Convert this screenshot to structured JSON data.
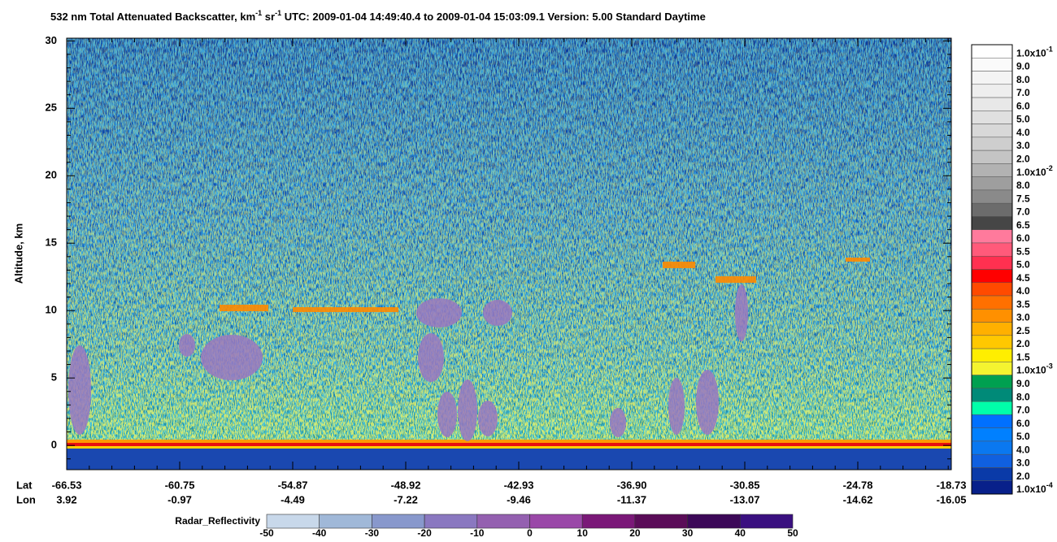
{
  "chart_data": {
    "type": "curtain",
    "title": {
      "parts": [
        {
          "text": "532 nm Total Attenuated Backscatter, km"
        },
        {
          "text": "-1",
          "sup": true
        },
        {
          "text": " sr"
        },
        {
          "text": "-1",
          "sup": true
        },
        {
          "text": "    UTC:  2009-01-04 14:49:40.4  to  2009-01-04 15:03:09.1    Version: 5.00  Standard  Daytime"
        }
      ]
    },
    "ylabel": "Altitude, km",
    "ylim": [
      -1.8,
      30.2
    ],
    "yticks": [
      0,
      5,
      10,
      15,
      20,
      25,
      30
    ],
    "x_rows": [
      {
        "label": "Lat",
        "values": [
          "-66.53",
          "-60.75",
          "-54.87",
          "-48.92",
          "-42.93",
          "-36.90",
          "-30.85",
          "-24.78",
          "-18.73"
        ]
      },
      {
        "label": "Lon",
        "values": [
          "3.92",
          "-0.97",
          "-4.49",
          "-7.22",
          "-9.46",
          "-11.37",
          "-13.07",
          "-14.62",
          "-16.05"
        ]
      }
    ],
    "colorbar": {
      "labels": [
        {
          "text": "1.0x10",
          "sup": "-1"
        },
        {
          "text": "9.0"
        },
        {
          "text": "8.0"
        },
        {
          "text": "7.0"
        },
        {
          "text": "6.0"
        },
        {
          "text": "5.0"
        },
        {
          "text": "4.0"
        },
        {
          "text": "3.0"
        },
        {
          "text": "2.0"
        },
        {
          "text": "1.0x10",
          "sup": "-2"
        },
        {
          "text": "8.0"
        },
        {
          "text": "7.5"
        },
        {
          "text": "7.0"
        },
        {
          "text": "6.5"
        },
        {
          "text": "6.0"
        },
        {
          "text": "5.5"
        },
        {
          "text": "5.0"
        },
        {
          "text": "4.5"
        },
        {
          "text": "4.0"
        },
        {
          "text": "3.5"
        },
        {
          "text": "3.0"
        },
        {
          "text": "2.5"
        },
        {
          "text": "2.0"
        },
        {
          "text": "1.5"
        },
        {
          "text": "1.0x10",
          "sup": "-3"
        },
        {
          "text": "9.0"
        },
        {
          "text": "8.0"
        },
        {
          "text": "7.0"
        },
        {
          "text": "6.0"
        },
        {
          "text": "5.0"
        },
        {
          "text": "4.0"
        },
        {
          "text": "3.0"
        },
        {
          "text": "2.0"
        },
        {
          "text": "1.0x10",
          "sup": "-4"
        }
      ],
      "colors": [
        "#ffffff",
        "#fafafa",
        "#f4f4f4",
        "#eeeeee",
        "#e8e8e8",
        "#e0e0e0",
        "#d8d8d8",
        "#cecece",
        "#c4c4c4",
        "#b2b2b2",
        "#9e9e9e",
        "#8a8a8a",
        "#6c6c6c",
        "#464646",
        "#ff7a9c",
        "#ff5a7a",
        "#ff3050",
        "#ff0000",
        "#ff4a00",
        "#ff7000",
        "#ff9000",
        "#ffb000",
        "#ffc800",
        "#ffee00",
        "#f4f430",
        "#00a050",
        "#008a78",
        "#00ffaa",
        "#0070ff",
        "#0080ff",
        "#0a78f0",
        "#1060e0",
        "#0a3aa8",
        "#08208a"
      ]
    },
    "radar_colorbar": {
      "label": "Radar_Reflectivity",
      "ticks": [
        -50,
        -40,
        -30,
        -20,
        -10,
        0,
        10,
        20,
        30,
        40,
        50
      ],
      "colors": [
        "#c8d8ea",
        "#a0b8d8",
        "#8898cc",
        "#8a78c0",
        "#9460b0",
        "#9a48a8",
        "#7a1878",
        "#5a0c58",
        "#3c0858",
        "#3a1080"
      ]
    }
  }
}
